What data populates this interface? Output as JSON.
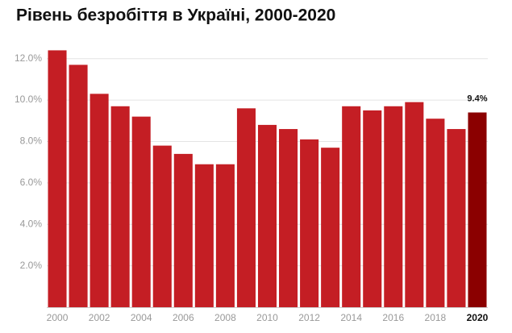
{
  "chart_data": {
    "type": "bar",
    "title": "Рівень безробіття в Україні, 2000-2020",
    "categories": [
      "2000",
      null,
      "2002",
      null,
      "2004",
      null,
      "2006",
      null,
      "2008",
      null,
      "2010",
      null,
      "2012",
      null,
      "2014",
      null,
      "2016",
      null,
      "2018",
      null,
      "2020"
    ],
    "values": [
      12.4,
      11.7,
      10.3,
      9.7,
      9.2,
      7.8,
      7.4,
      6.9,
      6.9,
      9.6,
      8.8,
      8.6,
      8.1,
      7.7,
      9.7,
      9.5,
      9.7,
      9.9,
      9.1,
      8.6,
      9.4
    ],
    "value_labels": [
      null,
      null,
      null,
      null,
      null,
      null,
      null,
      null,
      null,
      null,
      null,
      null,
      null,
      null,
      null,
      null,
      null,
      null,
      null,
      null,
      "9.4%"
    ],
    "colors": [
      "#c41e24",
      "#c41e24",
      "#c41e24",
      "#c41e24",
      "#c41e24",
      "#c41e24",
      "#c41e24",
      "#c41e24",
      "#c41e24",
      "#c41e24",
      "#c41e24",
      "#c41e24",
      "#c41e24",
      "#c41e24",
      "#c41e24",
      "#c41e24",
      "#c41e24",
      "#c41e24",
      "#c41e24",
      "#c41e24",
      "#8b0000"
    ],
    "ylim": [
      0,
      13
    ],
    "yticks": [
      {
        "value": 2,
        "label": "2.0%"
      },
      {
        "value": 4,
        "label": "4.0%"
      },
      {
        "value": 6,
        "label": "6.0%"
      },
      {
        "value": 8,
        "label": "8.0%"
      },
      {
        "value": 10,
        "label": "10.0%"
      },
      {
        "value": 12,
        "label": "12.0%"
      }
    ],
    "grid": true
  }
}
